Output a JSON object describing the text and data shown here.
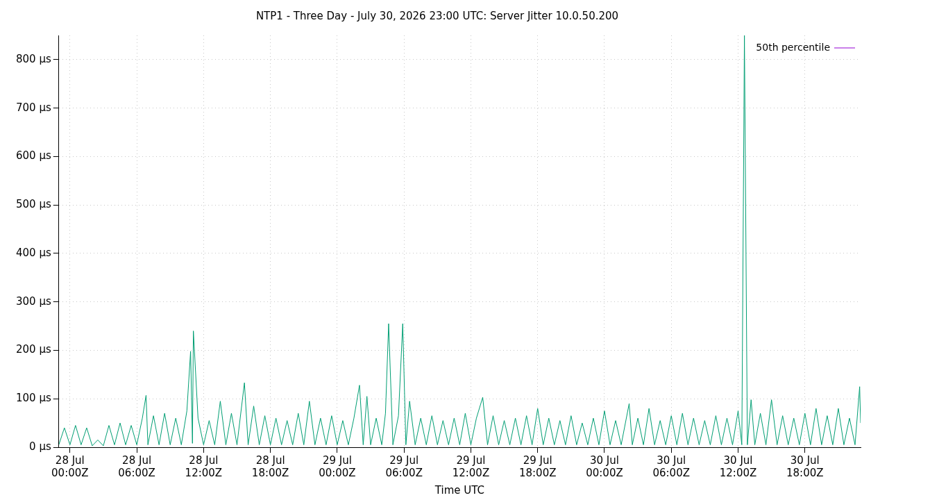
{
  "chart_data": {
    "type": "line",
    "title": "NTP1 - Three Day - July 30, 2026 23:00 UTC: Server Jitter 10.0.50.200",
    "xlabel": "Time UTC",
    "xlim": [
      "2026-07-27T23:00",
      "2026-07-30T23:00"
    ],
    "xticks": [
      {
        "value": "2026-07-28T00:00",
        "label": "28 Jul\n00:00Z"
      },
      {
        "value": "2026-07-28T06:00",
        "label": "28 Jul\n06:00Z"
      },
      {
        "value": "2026-07-28T12:00",
        "label": "28 Jul\n12:00Z"
      },
      {
        "value": "2026-07-28T18:00",
        "label": "28 Jul\n18:00Z"
      },
      {
        "value": "2026-07-29T00:00",
        "label": "29 Jul\n00:00Z"
      },
      {
        "value": "2026-07-29T06:00",
        "label": "29 Jul\n06:00Z"
      },
      {
        "value": "2026-07-29T12:00",
        "label": "29 Jul\n12:00Z"
      },
      {
        "value": "2026-07-29T18:00",
        "label": "29 Jul\n18:00Z"
      },
      {
        "value": "2026-07-30T00:00",
        "label": "30 Jul\n00:00Z"
      },
      {
        "value": "2026-07-30T06:00",
        "label": "30 Jul\n06:00Z"
      },
      {
        "value": "2026-07-30T12:00",
        "label": "30 Jul\n12:00Z"
      },
      {
        "value": "2026-07-30T18:00",
        "label": "30 Jul\n18:00Z"
      }
    ],
    "ylim": [
      0,
      850
    ],
    "yticks": [
      {
        "value": 0,
        "label": "0 µs"
      },
      {
        "value": 100,
        "label": "100 µs"
      },
      {
        "value": 200,
        "label": "200 µs"
      },
      {
        "value": 300,
        "label": "300 µs"
      },
      {
        "value": 400,
        "label": "400 µs"
      },
      {
        "value": 500,
        "label": "500 µs"
      },
      {
        "value": 600,
        "label": "600 µs"
      },
      {
        "value": 700,
        "label": "700 µs"
      },
      {
        "value": 800,
        "label": "800 µs"
      }
    ],
    "grid": true,
    "legend": "top right",
    "marker": "none",
    "line_style": "solid",
    "series": [
      {
        "name": "50th percentile",
        "color": "#9400d3"
      },
      {
        "color": "#009e73",
        "x": [
          "2026-07-27T23:00",
          "2026-07-27T23:30",
          "2026-07-28T00:00",
          "2026-07-28T00:30",
          "2026-07-28T01:00",
          "2026-07-28T01:30",
          "2026-07-28T02:00",
          "2026-07-28T02:30",
          "2026-07-28T03:00",
          "2026-07-28T03:30",
          "2026-07-28T04:00",
          "2026-07-28T04:30",
          "2026-07-28T05:00",
          "2026-07-28T05:30",
          "2026-07-28T06:00",
          "2026-07-28T06:30",
          "2026-07-28T06:50",
          "2026-07-28T07:00",
          "2026-07-28T07:30",
          "2026-07-28T08:00",
          "2026-07-28T08:30",
          "2026-07-28T09:00",
          "2026-07-28T09:30",
          "2026-07-28T10:00",
          "2026-07-28T10:30",
          "2026-07-28T10:50",
          "2026-07-28T11:00",
          "2026-07-28T11:05",
          "2026-07-28T11:30",
          "2026-07-28T12:00",
          "2026-07-28T12:30",
          "2026-07-28T13:00",
          "2026-07-28T13:30",
          "2026-07-28T14:00",
          "2026-07-28T14:30",
          "2026-07-28T15:00",
          "2026-07-28T15:40",
          "2026-07-28T16:00",
          "2026-07-28T16:30",
          "2026-07-28T17:00",
          "2026-07-28T17:30",
          "2026-07-28T18:00",
          "2026-07-28T18:30",
          "2026-07-28T19:00",
          "2026-07-28T19:30",
          "2026-07-28T20:00",
          "2026-07-28T20:30",
          "2026-07-28T21:00",
          "2026-07-28T21:30",
          "2026-07-28T22:00",
          "2026-07-28T22:30",
          "2026-07-28T23:00",
          "2026-07-28T23:30",
          "2026-07-29T00:00",
          "2026-07-29T00:30",
          "2026-07-29T01:00",
          "2026-07-29T01:30",
          "2026-07-29T02:00",
          "2026-07-29T02:20",
          "2026-07-29T02:40",
          "2026-07-29T03:00",
          "2026-07-29T03:30",
          "2026-07-29T04:00",
          "2026-07-29T04:20",
          "2026-07-29T04:37",
          "2026-07-29T05:00",
          "2026-07-29T05:30",
          "2026-07-29T05:53",
          "2026-07-29T06:10",
          "2026-07-29T06:30",
          "2026-07-29T07:00",
          "2026-07-29T07:30",
          "2026-07-29T08:00",
          "2026-07-29T08:30",
          "2026-07-29T09:00",
          "2026-07-29T09:30",
          "2026-07-29T10:00",
          "2026-07-29T10:30",
          "2026-07-29T11:00",
          "2026-07-29T11:30",
          "2026-07-29T12:00",
          "2026-07-29T12:30",
          "2026-07-29T13:04",
          "2026-07-29T13:30",
          "2026-07-29T14:00",
          "2026-07-29T14:30",
          "2026-07-29T15:00",
          "2026-07-29T15:30",
          "2026-07-29T16:00",
          "2026-07-29T16:30",
          "2026-07-29T17:00",
          "2026-07-29T17:30",
          "2026-07-29T18:00",
          "2026-07-29T18:30",
          "2026-07-29T19:00",
          "2026-07-29T19:30",
          "2026-07-29T20:00",
          "2026-07-29T20:30",
          "2026-07-29T21:00",
          "2026-07-29T21:30",
          "2026-07-29T22:00",
          "2026-07-29T22:30",
          "2026-07-29T23:00",
          "2026-07-29T23:30",
          "2026-07-30T00:00",
          "2026-07-30T00:30",
          "2026-07-30T01:00",
          "2026-07-30T01:30",
          "2026-07-30T02:13",
          "2026-07-30T02:30",
          "2026-07-30T03:00",
          "2026-07-30T03:30",
          "2026-07-30T04:00",
          "2026-07-30T04:30",
          "2026-07-30T05:00",
          "2026-07-30T05:30",
          "2026-07-30T06:00",
          "2026-07-30T06:30",
          "2026-07-30T07:00",
          "2026-07-30T07:30",
          "2026-07-30T08:00",
          "2026-07-30T08:30",
          "2026-07-30T09:00",
          "2026-07-30T09:30",
          "2026-07-30T10:00",
          "2026-07-30T10:30",
          "2026-07-30T11:00",
          "2026-07-30T11:30",
          "2026-07-30T12:00",
          "2026-07-30T12:20",
          "2026-07-30T12:34",
          "2026-07-30T12:50",
          "2026-07-30T13:10",
          "2026-07-30T13:30",
          "2026-07-30T14:00",
          "2026-07-30T14:30",
          "2026-07-30T15:00",
          "2026-07-30T15:30",
          "2026-07-30T16:00",
          "2026-07-30T16:30",
          "2026-07-30T17:00",
          "2026-07-30T17:30",
          "2026-07-30T18:00",
          "2026-07-30T18:30",
          "2026-07-30T19:00",
          "2026-07-30T19:30",
          "2026-07-30T20:00",
          "2026-07-30T20:30",
          "2026-07-30T21:00",
          "2026-07-30T21:30",
          "2026-07-30T22:00",
          "2026-07-30T22:30",
          "2026-07-30T22:55",
          "2026-07-30T23:00"
        ],
        "values": [
          5,
          40,
          5,
          45,
          5,
          40,
          3,
          15,
          3,
          45,
          5,
          50,
          5,
          45,
          5,
          60,
          107,
          5,
          65,
          5,
          70,
          5,
          60,
          5,
          75,
          198,
          8,
          240,
          60,
          5,
          55,
          5,
          95,
          5,
          70,
          5,
          133,
          5,
          85,
          5,
          65,
          5,
          60,
          5,
          55,
          5,
          70,
          5,
          95,
          5,
          60,
          5,
          65,
          5,
          55,
          5,
          60,
          128,
          5,
          105,
          5,
          60,
          5,
          70,
          255,
          5,
          65,
          255,
          5,
          95,
          5,
          60,
          5,
          65,
          5,
          55,
          5,
          60,
          5,
          70,
          5,
          60,
          103,
          5,
          65,
          5,
          55,
          5,
          60,
          5,
          65,
          5,
          80,
          5,
          60,
          5,
          55,
          5,
          65,
          5,
          50,
          5,
          60,
          5,
          75,
          5,
          55,
          5,
          90,
          5,
          60,
          5,
          80,
          5,
          55,
          5,
          65,
          5,
          70,
          5,
          60,
          5,
          55,
          5,
          65,
          5,
          60,
          5,
          75,
          5,
          850,
          5,
          98,
          5,
          70,
          5,
          98,
          5,
          65,
          5,
          60,
          5,
          70,
          5,
          80,
          5,
          65,
          5,
          80,
          5,
          60,
          5,
          125,
          50
        ]
      }
    ]
  }
}
